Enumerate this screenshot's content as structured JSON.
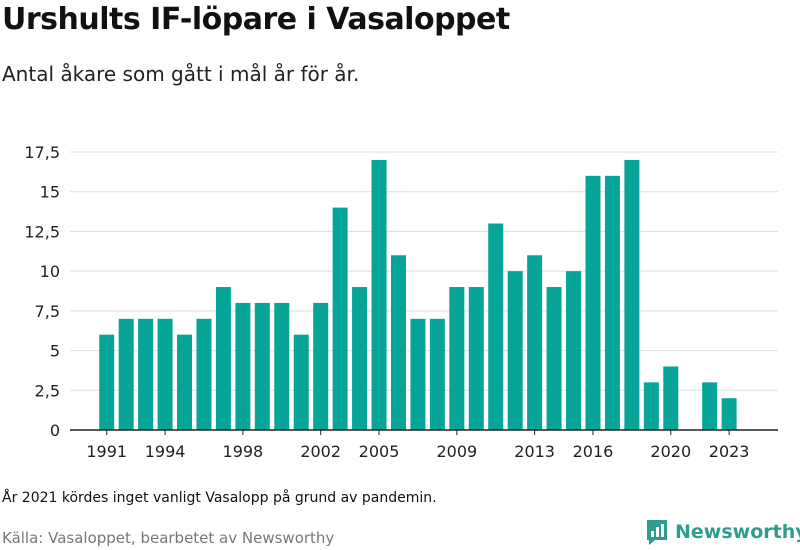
{
  "header": {
    "title": "Urshults IF-löpare i Vasaloppet",
    "subtitle": "Antal åkare som gått i mål år för år."
  },
  "footer": {
    "note": "År 2021 kördes inget vanligt Vasalopp på grund av pandemin.",
    "source": "Källa: Vasaloppet, bearbetet av Newsworthy",
    "brand": "Newsworthy"
  },
  "colors": {
    "bar": "#07a597",
    "grid": "#dddddd",
    "brand": "#2e9c8f"
  },
  "chart_data": {
    "type": "bar",
    "title": "Urshults IF-löpare i Vasaloppet",
    "subtitle": "Antal åkare som gått i mål år för år.",
    "xlabel": "",
    "ylabel": "",
    "categories": [
      1991,
      1992,
      1993,
      1994,
      1995,
      1996,
      1997,
      1998,
      1999,
      2000,
      2001,
      2002,
      2003,
      2004,
      2005,
      2006,
      2007,
      2008,
      2009,
      2010,
      2011,
      2012,
      2013,
      2014,
      2015,
      2016,
      2017,
      2018,
      2019,
      2020,
      2021,
      2022,
      2023
    ],
    "values": [
      6,
      7,
      7,
      7,
      6,
      7,
      9,
      8,
      8,
      8,
      6,
      8,
      14,
      9,
      17,
      11,
      7,
      7,
      9,
      9,
      13,
      10,
      11,
      9,
      10,
      16,
      16,
      17,
      3,
      4,
      0,
      3,
      2
    ],
    "ylim": [
      0,
      17.5
    ],
    "yticks": [
      "0",
      "2,5",
      "5",
      "7,5",
      "10",
      "12,5",
      "15",
      "17,5"
    ],
    "ytick_values": [
      0,
      2.5,
      5,
      7.5,
      10,
      12.5,
      15,
      17.5
    ],
    "xtick_labels": [
      "1991",
      "1994",
      "1998",
      "2002",
      "2005",
      "2009",
      "2013",
      "2016",
      "2020",
      "2023"
    ],
    "grid": true
  }
}
